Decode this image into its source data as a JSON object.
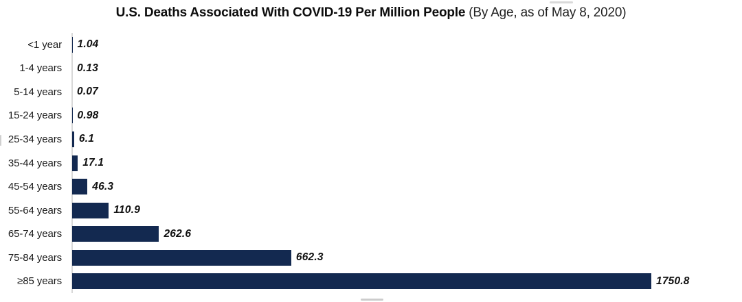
{
  "title": {
    "bold": "U.S. Deaths Associated With COVID-19 Per Million People",
    "regular": "(By Age, as of May 8, 2020)"
  },
  "chart_data": {
    "type": "bar",
    "orientation": "horizontal",
    "title": "U.S. Deaths Associated With COVID-19 Per Million People (By Age, as of May 8, 2020)",
    "categories": [
      "<1 year",
      "1-4 years",
      "5-14 years",
      "15-24 years",
      "25-34 years",
      "35-44 years",
      "45-54 years",
      "55-64 years",
      "65-74 years",
      "75-84 years",
      "≥85 years"
    ],
    "values": [
      1.04,
      0.13,
      0.07,
      0.98,
      6.1,
      17.1,
      46.3,
      110.9,
      262.6,
      662.3,
      1750.8
    ],
    "value_labels": [
      "1.04",
      "0.13",
      "0.07",
      "0.98",
      "6.1",
      "17.1",
      "46.3",
      "110.9",
      "262.6",
      "662.3",
      "1750.8"
    ],
    "xlabel": "",
    "ylabel": "",
    "xlim": [
      0,
      1750.8
    ],
    "grid": false,
    "legend": false,
    "data_labels": "bold-italic at bar end",
    "bar_color": "#132950",
    "axis_line_color": "#d8d8d8",
    "label_color": "#1b1b1b",
    "value_label_color": "#111111"
  }
}
